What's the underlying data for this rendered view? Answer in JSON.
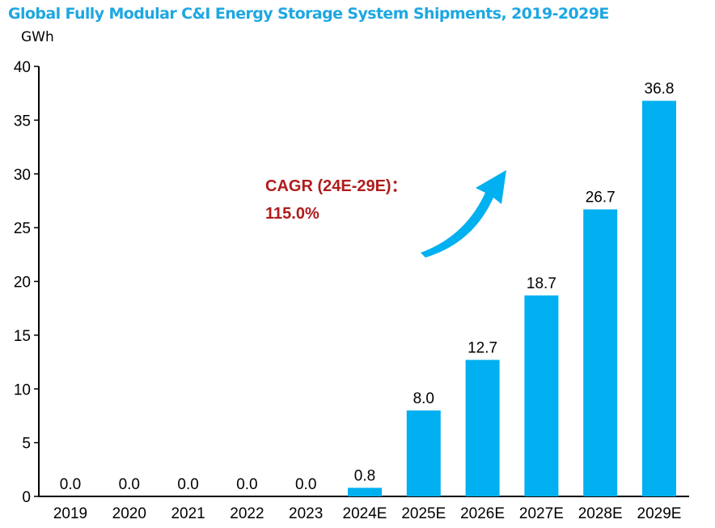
{
  "chart_data": {
    "type": "bar",
    "title": "Global Fully Modular C&I Energy Storage System Shipments, 2019-2029E",
    "ylabel": "GWh",
    "xlabel": "",
    "ylim": [
      0,
      40
    ],
    "yticks": [
      0,
      5,
      10,
      15,
      20,
      25,
      30,
      35,
      40
    ],
    "categories": [
      "2019",
      "2020",
      "2021",
      "2022",
      "2023",
      "2024E",
      "2025E",
      "2026E",
      "2027E",
      "2028E",
      "2029E"
    ],
    "values": [
      0.0,
      0.0,
      0.0,
      0.0,
      0.0,
      0.8,
      8.0,
      12.7,
      18.7,
      26.7,
      36.8
    ],
    "data_labels": [
      "0.0",
      "0.0",
      "0.0",
      "0.0",
      "0.0",
      "0.8",
      "8.0",
      "12.7",
      "18.7",
      "26.7",
      "36.8"
    ],
    "bar_color": "#00b0f0",
    "title_color": "#1ea7e1",
    "annotation": {
      "line1": "CAGR (24E-29E)：",
      "line2": "115.0%",
      "color": "#b01c1c"
    },
    "grid": false,
    "legend": "none"
  }
}
